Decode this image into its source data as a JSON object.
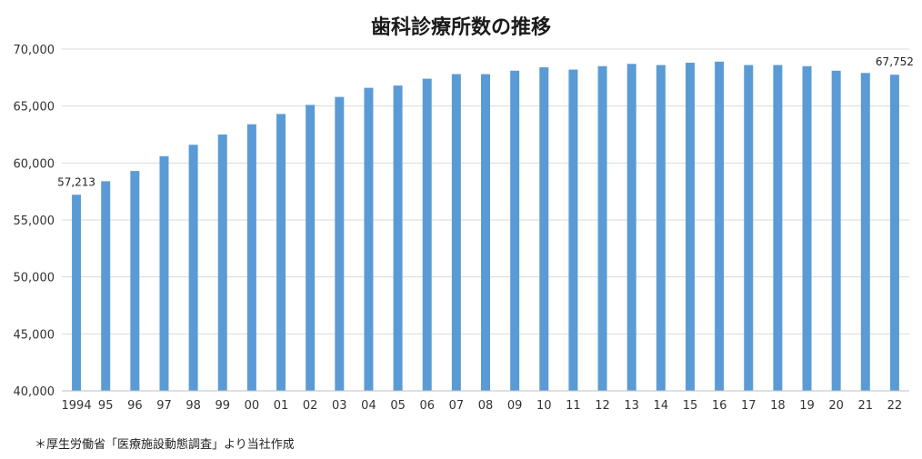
{
  "chart_data": {
    "type": "bar",
    "title": "歯科診療所数の推移",
    "xlabel": "",
    "ylabel": "",
    "categories": [
      "1994",
      "95",
      "96",
      "97",
      "98",
      "99",
      "00",
      "01",
      "02",
      "03",
      "04",
      "05",
      "06",
      "07",
      "08",
      "09",
      "10",
      "11",
      "12",
      "13",
      "14",
      "15",
      "16",
      "17",
      "18",
      "19",
      "20",
      "21",
      "22"
    ],
    "values": [
      57213,
      58400,
      59300,
      60600,
      61600,
      62500,
      63400,
      64300,
      65100,
      65800,
      66600,
      66800,
      67400,
      67800,
      67800,
      68100,
      68400,
      68200,
      68500,
      68700,
      68600,
      68800,
      68900,
      68600,
      68600,
      68500,
      68100,
      67900,
      67752
    ],
    "ylim": [
      40000,
      70000
    ],
    "yticks": [
      "40,000",
      "45,000",
      "50,000",
      "55,000",
      "60,000",
      "65,000",
      "70,000"
    ],
    "ytick_values": [
      40000,
      45000,
      50000,
      55000,
      60000,
      65000,
      70000
    ],
    "grid": true,
    "legend": "none",
    "bar_color": "#5b9bd5",
    "data_labels": [
      {
        "index": 0,
        "text": "57,213"
      },
      {
        "index": 28,
        "text": "67,752"
      }
    ]
  },
  "footnote": "＊厚生労働省「医療施設動態調査」より当社作成"
}
